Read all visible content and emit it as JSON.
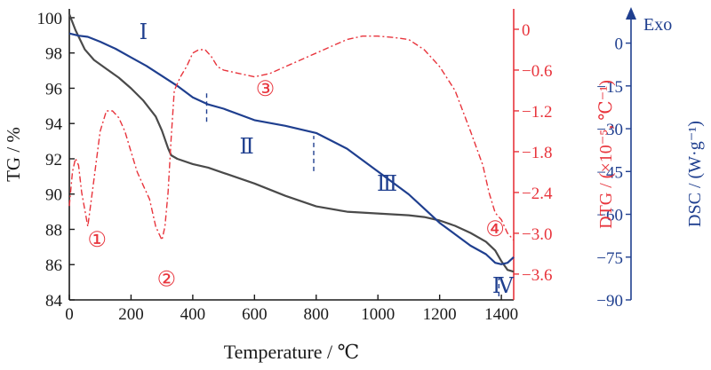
{
  "chart_data": {
    "type": "line",
    "xlabel": "Temperature / ℃",
    "x_ticks": [
      "0",
      "200",
      "400",
      "600",
      "800",
      "1000",
      "1200",
      "1400"
    ],
    "xlim": [
      0,
      1440
    ],
    "axes": {
      "tg": {
        "label": "TG / %",
        "ylim": [
          84,
          100.5
        ],
        "ticks": [
          "84",
          "86",
          "88",
          "90",
          "92",
          "94",
          "96",
          "98",
          "100"
        ],
        "color": "#1a1a1a"
      },
      "dtg": {
        "label": "DTG / (×10⁻⁵, ℃⁻¹)",
        "ylim": [
          -3.98,
          0.3
        ],
        "ticks": [
          "0",
          "−0.6",
          "−1.2",
          "−1.8",
          "−2.4",
          "−3.0",
          "−3.6"
        ],
        "color": "#e8343c"
      },
      "dsc": {
        "label": "DSC / (W·g⁻¹)",
        "ylim": [
          -90,
          12
        ],
        "ticks": [
          "0",
          "−15",
          "−30",
          "−45",
          "−60",
          "−75",
          "−90"
        ],
        "exo_label": "Exo",
        "color": "#1f3f8f"
      }
    },
    "series": [
      {
        "axis": "tg",
        "x": [
          0,
          20,
          50,
          80,
          120,
          160,
          200,
          240,
          280,
          300,
          320,
          330,
          350,
          400,
          450,
          500,
          600,
          700,
          800,
          900,
          1000,
          1100,
          1150,
          1200,
          1250,
          1300,
          1350,
          1380,
          1400,
          1420,
          1440
        ],
        "y": [
          100.2,
          99.3,
          98.2,
          97.6,
          97.1,
          96.6,
          96.0,
          95.3,
          94.4,
          93.6,
          92.6,
          92.2,
          92.0,
          91.7,
          91.5,
          91.2,
          90.6,
          89.9,
          89.3,
          89.0,
          88.9,
          88.8,
          88.7,
          88.5,
          88.2,
          87.8,
          87.3,
          86.8,
          86.2,
          85.7,
          85.6
        ]
      },
      {
        "axis": "dsc",
        "x": [
          0,
          30,
          60,
          100,
          150,
          200,
          250,
          300,
          350,
          400,
          450,
          500,
          600,
          700,
          800,
          900,
          1000,
          1100,
          1150,
          1200,
          1250,
          1300,
          1350,
          1380,
          1400,
          1420,
          1440
        ],
        "y": [
          3.4,
          2.6,
          2.2,
          0.5,
          -2,
          -5,
          -8,
          -11.5,
          -15,
          -19,
          -21.5,
          -23,
          -27,
          -29,
          -31.5,
          -37,
          -45,
          -53,
          -58,
          -63,
          -67,
          -71,
          -74,
          -77,
          -77.5,
          -77,
          -75
        ]
      },
      {
        "axis": "dtg",
        "x": [
          0,
          10,
          20,
          30,
          40,
          60,
          80,
          100,
          120,
          140,
          160,
          180,
          200,
          220,
          240,
          260,
          280,
          300,
          310,
          320,
          330,
          340,
          360,
          380,
          400,
          420,
          440,
          460,
          480,
          500,
          550,
          600,
          650,
          700,
          750,
          800,
          850,
          900,
          950,
          1000,
          1050,
          1100,
          1150,
          1200,
          1250,
          1300,
          1340,
          1360,
          1380,
          1400,
          1420,
          1440
        ],
        "y": [
          -2.6,
          -2.1,
          -1.9,
          -2.0,
          -2.4,
          -2.9,
          -2.2,
          -1.5,
          -1.2,
          -1.2,
          -1.3,
          -1.5,
          -1.8,
          -2.1,
          -2.3,
          -2.5,
          -2.9,
          -3.1,
          -2.9,
          -2.4,
          -1.6,
          -0.9,
          -0.7,
          -0.55,
          -0.35,
          -0.3,
          -0.3,
          -0.4,
          -0.55,
          -0.6,
          -0.65,
          -0.7,
          -0.65,
          -0.55,
          -0.45,
          -0.35,
          -0.25,
          -0.15,
          -0.1,
          -0.1,
          -0.12,
          -0.15,
          -0.3,
          -0.55,
          -0.9,
          -1.5,
          -2.0,
          -2.4,
          -2.7,
          -2.8,
          -3.0,
          -3.1
        ]
      }
    ],
    "annotations": [
      {
        "text": "①",
        "axis": "dtg",
        "x": 90,
        "y": -3.2,
        "color": "#e8343c"
      },
      {
        "text": "②",
        "axis": "dtg",
        "x": 315,
        "y": -3.78,
        "color": "#e8343c"
      },
      {
        "text": "③",
        "axis": "dtg",
        "x": 635,
        "y": -0.98,
        "color": "#e8343c"
      },
      {
        "text": "④",
        "axis": "dtg",
        "x": 1380,
        "y": -3.04,
        "color": "#e8343c"
      },
      {
        "text": "Ⅰ",
        "axis": "tg",
        "x": 240,
        "y": 98.8,
        "color": "#1f3f8f"
      },
      {
        "text": "Ⅱ",
        "axis": "tg",
        "x": 575,
        "y": 92.3,
        "color": "#1f3f8f"
      },
      {
        "text": "Ⅲ",
        "axis": "tg",
        "x": 1030,
        "y": 90.2,
        "color": "#1f3f8f"
      },
      {
        "text": "Ⅳ",
        "axis": "tg",
        "x": 1405,
        "y": 84.4,
        "color": "#1f3f8f"
      }
    ],
    "stage_dividers": [
      {
        "x": 445,
        "axis": "tg",
        "y_from": 94.1,
        "y_to": 95.9
      },
      {
        "x": 792,
        "axis": "tg",
        "y_from": 91.3,
        "y_to": 93.3
      },
      {
        "x": 1392,
        "axis": "tg",
        "y_from": 84.2,
        "y_to": 85.3
      }
    ]
  }
}
